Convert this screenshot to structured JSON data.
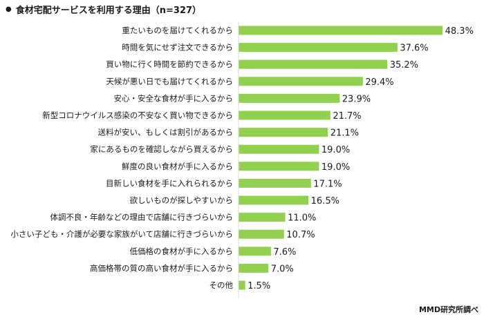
{
  "title": "食材宅配サービスを利用する理由（n=327）",
  "source": "MMD研究所調べ",
  "chart_data": {
    "type": "bar",
    "orientation": "horizontal",
    "title": "食材宅配サービスを利用する理由（n=327）",
    "categories": [
      "重たいものを届けてくれるから",
      "時間を気にせず注文できるから",
      "買い物に行く時間を節約できるから",
      "天候が悪い日でも届けてくれるから",
      "安心・安全な食材が手に入るから",
      "新型コロナウイルス感染の不安なく買い物できるから",
      "送料が安い、もしくは割引があるから",
      "家にあるものを確認しながら買えるから",
      "鮮度の良い食材が手に入るから",
      "目新しい食材を手に入れられるから",
      "欲しいものが探しやすいから",
      "体調不良・年齢などの理由で店舗に行きづらいから",
      "小さい子ども・介護が必要な家族がいて店舗に行きづらいから",
      "低価格の食材が手に入るから",
      "高価格帯の質の高い食材が手に入るから",
      "その他"
    ],
    "values": [
      48.3,
      37.6,
      35.2,
      29.4,
      23.9,
      21.7,
      21.1,
      19.0,
      19.0,
      17.1,
      16.5,
      11.0,
      10.7,
      7.6,
      7.0,
      1.5
    ],
    "value_labels": [
      "48.3%",
      "37.6%",
      "35.2%",
      "29.4%",
      "23.9%",
      "21.7%",
      "21.1%",
      "19.0%",
      "19.0%",
      "17.1%",
      "16.5%",
      "11.0%",
      "10.7%",
      "7.6%",
      "7.0%",
      "1.5%"
    ],
    "unit": "%",
    "xlim": [
      0,
      50
    ],
    "bar_color": "#92d050",
    "grid": false,
    "legend": "none"
  }
}
